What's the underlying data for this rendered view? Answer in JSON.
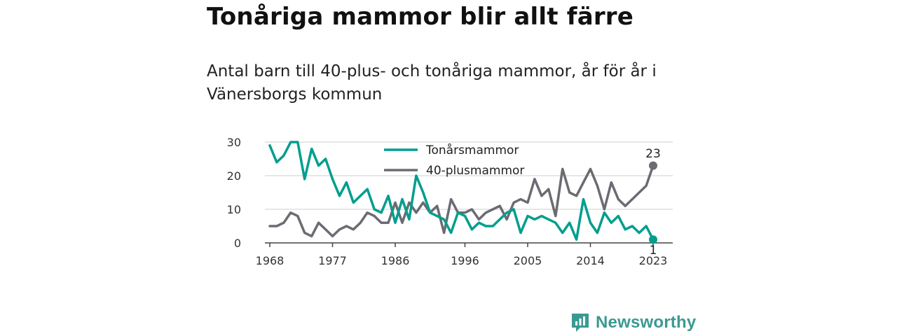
{
  "title": "Tonåriga mammor blir allt färre",
  "subtitle": "Antal barn till 40-plus- och tonåriga mammor, år för år i Vänersborgs kommun",
  "brand": {
    "name": "Newsworthy"
  },
  "colors": {
    "teen": "#009e8e",
    "plus40": "#6b6b73",
    "grid": "#dddddd",
    "axis": "#444444"
  },
  "chart_data": {
    "type": "line",
    "x": [
      1968,
      1969,
      1970,
      1971,
      1972,
      1973,
      1974,
      1975,
      1976,
      1977,
      1978,
      1979,
      1980,
      1981,
      1982,
      1983,
      1984,
      1985,
      1986,
      1987,
      1988,
      1989,
      1990,
      1991,
      1992,
      1993,
      1994,
      1995,
      1996,
      1997,
      1998,
      1999,
      2000,
      2001,
      2002,
      2003,
      2004,
      2005,
      2006,
      2007,
      2008,
      2009,
      2010,
      2011,
      2012,
      2013,
      2014,
      2015,
      2016,
      2017,
      2018,
      2019,
      2020,
      2021,
      2022,
      2023
    ],
    "series": [
      {
        "name": "Tonårsmammor",
        "color": "#009e8e",
        "values": [
          29,
          24,
          26,
          30,
          30,
          19,
          28,
          23,
          25,
          19,
          14,
          18,
          12,
          14,
          16,
          10,
          9,
          14,
          6,
          13,
          7,
          20,
          15,
          9,
          8,
          7,
          3,
          9,
          8,
          4,
          6,
          5,
          5,
          7,
          9,
          10,
          3,
          8,
          7,
          8,
          7,
          6,
          3,
          6,
          1,
          13,
          6,
          3,
          9,
          6,
          8,
          4,
          5,
          3,
          5,
          1
        ]
      },
      {
        "name": "40-plusmammor",
        "color": "#6b6b73",
        "values": [
          5,
          5,
          6,
          9,
          8,
          3,
          2,
          6,
          4,
          2,
          4,
          5,
          4,
          6,
          9,
          8,
          6,
          6,
          12,
          6,
          12,
          9,
          12,
          9,
          11,
          3,
          13,
          9,
          9,
          10,
          7,
          9,
          10,
          11,
          7,
          12,
          13,
          12,
          19,
          14,
          16,
          8,
          22,
          15,
          14,
          18,
          22,
          17,
          10,
          18,
          13,
          11,
          13,
          15,
          17,
          23
        ]
      }
    ],
    "xticks": [
      1968,
      1977,
      1986,
      1996,
      2005,
      2014,
      2023
    ],
    "yticks": [
      0,
      10,
      20,
      30
    ],
    "xlim": [
      1968,
      2023
    ],
    "ylim": [
      0,
      30
    ],
    "grid": true,
    "legend": "top-center",
    "end_labels": {
      "40-plusmammor": "23",
      "Tonårsmammor": "1"
    }
  }
}
